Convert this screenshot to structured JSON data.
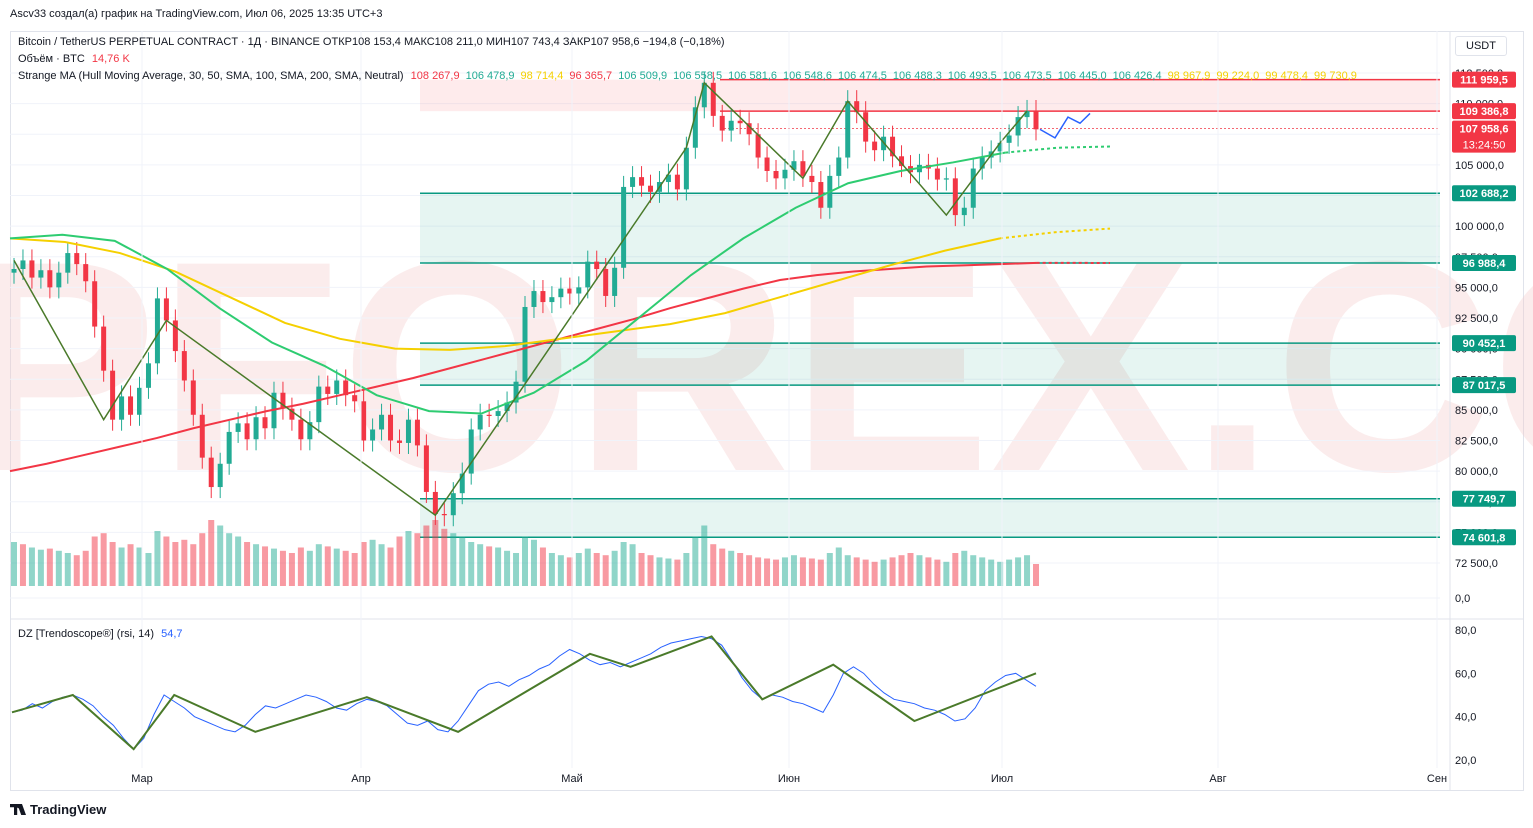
{
  "credit": "Ascv33 создал(а) график на TradingView.com, Июл 06, 2025 13:35 UTC+3",
  "symbol_line": "Bitcoin / TetherUS PERPETUAL CONTRACT · 1Д · BINANCE  ОТКР108 153,4  МАКС108 211,0  МИН107 743,4  ЗАКР107 958,6  −194,8 (−0,18%)",
  "volume_line": {
    "label": "Объём · BTC",
    "value": "14,76 K"
  },
  "ma_line": {
    "label": "Strange MA (Hull Moving Average, 30, 50, SMA, 100, SMA, 200, SMA, Neutral)",
    "values": [
      {
        "text": "108 267,9",
        "color": "#f23645"
      },
      {
        "text": "106 478,9",
        "color": "#22ab94"
      },
      {
        "text": "98 714,4",
        "color": "#f5d000"
      },
      {
        "text": "96 365,7",
        "color": "#f23645"
      },
      {
        "text": "106 509,9",
        "color": "#22ab94"
      },
      {
        "text": "106 558,5",
        "color": "#22ab94"
      },
      {
        "text": "106 581,6",
        "color": "#22ab94"
      },
      {
        "text": "106 548,6",
        "color": "#22ab94"
      },
      {
        "text": "106 474,5",
        "color": "#22ab94"
      },
      {
        "text": "106 488,3",
        "color": "#22ab94"
      },
      {
        "text": "106 493,5",
        "color": "#22ab94"
      },
      {
        "text": "106 473,5",
        "color": "#22ab94"
      },
      {
        "text": "106 445,0",
        "color": "#22ab94"
      },
      {
        "text": "106 426,4",
        "color": "#22ab94"
      },
      {
        "text": "98 967,9",
        "color": "#f5d000"
      },
      {
        "text": "99 224,0",
        "color": "#f5d000"
      },
      {
        "text": "99 478,4",
        "color": "#f5d000"
      },
      {
        "text": "99 730,9",
        "color": "#f5d000"
      }
    ]
  },
  "rsi_legend": {
    "label": "DZ [Trendoscope®] (rsi, 14)",
    "value": "54,7"
  },
  "currency_button": "USDT",
  "watermark": "TOPFOREX.COM",
  "chart_data": {
    "type": "candlestick",
    "currency": "USDT",
    "timeframe": "1D",
    "y_range": [
      0,
      114000
    ],
    "y_ticks": [
      {
        "value": 112500,
        "label": "112 500,0"
      },
      {
        "value": 110000,
        "label": "110 000,0"
      },
      {
        "value": 107500,
        "label": "107 500,0"
      },
      {
        "value": 105000,
        "label": "105 000,0"
      },
      {
        "value": 102500,
        "label": "102 500,0"
      },
      {
        "value": 100000,
        "label": "100 000,0"
      },
      {
        "value": 97500,
        "label": "97 500,0"
      },
      {
        "value": 95000,
        "label": "95 000,0"
      },
      {
        "value": 92500,
        "label": "92 500,0"
      },
      {
        "value": 90000,
        "label": "90 000,0"
      },
      {
        "value": 87500,
        "label": "87 500,0"
      },
      {
        "value": 85000,
        "label": "85 000,0"
      },
      {
        "value": 82500,
        "label": "82 500,0"
      },
      {
        "value": 80000,
        "label": "80 000,0"
      },
      {
        "value": 77500,
        "label": "77 500,0"
      },
      {
        "value": 75000,
        "label": "75 000,0"
      },
      {
        "value": 72500,
        "label": "72 500,0"
      },
      {
        "value": 0,
        "label": "0,0"
      }
    ],
    "x_labels": [
      "Мар",
      "Апр",
      "Май",
      "Июн",
      "Июл",
      "Авг",
      "Сен"
    ],
    "levels": [
      {
        "value": 111959.5,
        "label": "111 959,5",
        "color": "#f23645"
      },
      {
        "value": 109386.8,
        "label": "109 386,8",
        "color": "#f23645"
      },
      {
        "value": 107958.6,
        "label": "107 958,6",
        "color": "#f23645",
        "sublabel": "13:24:50"
      },
      {
        "value": 102688.2,
        "label": "102 688,2",
        "color": "#089981"
      },
      {
        "value": 96988.4,
        "label": "96 988,4",
        "color": "#089981"
      },
      {
        "value": 90452.1,
        "label": "90 452,1",
        "color": "#089981"
      },
      {
        "value": 87017.5,
        "label": "87 017,5",
        "color": "#089981"
      },
      {
        "value": 77749.7,
        "label": "77 749,7",
        "color": "#089981"
      },
      {
        "value": 74601.8,
        "label": "74 601,8",
        "color": "#089981"
      }
    ],
    "zones": [
      {
        "from": 109386.8,
        "to": 111959.5,
        "color": "#f23645"
      },
      {
        "from": 96988.4,
        "to": 102688.2,
        "color": "#089981"
      },
      {
        "from": 87017.5,
        "to": 90452.1,
        "color": "#089981"
      },
      {
        "from": 74601.8,
        "to": 77749.7,
        "color": "#089981"
      }
    ],
    "closes": [
      96500,
      97200,
      95800,
      96400,
      95000,
      96200,
      97800,
      96900,
      95500,
      91800,
      88200,
      84200,
      86100,
      84600,
      86800,
      88800,
      94100,
      92300,
      89800,
      87400,
      84600,
      81100,
      78700,
      80600,
      83200,
      83900,
      82600,
      84400,
      83500,
      86400,
      85100,
      84200,
      82600,
      84000,
      86900,
      86300,
      87400,
      86200,
      85700,
      82500,
      83400,
      84600,
      82500,
      82300,
      84200,
      82100,
      78300,
      76500,
      76400,
      78200,
      79800,
      83400,
      84600,
      84500,
      84900,
      85600,
      87300,
      93400,
      94700,
      93800,
      94200,
      94900,
      94500,
      95000,
      97100,
      96500,
      94300,
      96600,
      103200,
      104000,
      103300,
      102800,
      103600,
      104200,
      103000,
      106400,
      109700,
      111700,
      109000,
      107800,
      108600,
      108400,
      107500,
      105600,
      104500,
      103900,
      104600,
      105300,
      104100,
      103600,
      101500,
      104100,
      105600,
      110200,
      109300,
      106900,
      106200,
      107300,
      105700,
      104900,
      104400,
      105000,
      104700,
      103800,
      103900,
      100900,
      101500,
      104700,
      105600,
      106100,
      106800,
      107400,
      108900,
      109400,
      107900
    ],
    "volume": {
      "values": [
        40,
        38,
        35,
        33,
        34,
        32,
        30,
        28,
        32,
        45,
        48,
        40,
        35,
        38,
        35,
        30,
        50,
        45,
        40,
        42,
        38,
        48,
        60,
        55,
        48,
        45,
        40,
        38,
        36,
        34,
        32,
        30,
        35,
        32,
        38,
        36,
        34,
        32,
        30,
        40,
        42,
        38,
        35,
        45,
        50,
        48,
        55,
        60,
        52,
        48,
        45,
        40,
        38,
        36,
        35,
        32,
        30,
        45,
        42,
        35,
        30,
        28,
        26,
        30,
        34,
        30,
        28,
        32,
        40,
        38,
        30,
        28,
        26,
        25,
        24,
        30,
        45,
        55,
        38,
        34,
        32,
        30,
        28,
        26,
        25,
        24,
        26,
        28,
        26,
        25,
        24,
        30,
        35,
        28,
        26,
        24,
        22,
        24,
        26,
        28,
        30,
        28,
        26,
        24,
        22,
        30,
        32,
        28,
        26,
        24,
        22,
        24,
        26,
        28,
        20
      ],
      "up": [
        1,
        0,
        1,
        1,
        0,
        1,
        1,
        0,
        0,
        0,
        0,
        0,
        1,
        0,
        1,
        1,
        1,
        0,
        0,
        0,
        0,
        0,
        0,
        1,
        1,
        1,
        0,
        1,
        0,
        1,
        0,
        0,
        0,
        1,
        1,
        0,
        1,
        0,
        0,
        0,
        1,
        1,
        0,
        0,
        1,
        0,
        0,
        0,
        0,
        1,
        1,
        1,
        1,
        0,
        1,
        1,
        1,
        1,
        1,
        0,
        1,
        1,
        0,
        1,
        1,
        0,
        0,
        1,
        1,
        1,
        0,
        0,
        1,
        1,
        0,
        1,
        1,
        1,
        0,
        0,
        1,
        0,
        0,
        0,
        0,
        0,
        1,
        1,
        0,
        0,
        0,
        1,
        1,
        1,
        0,
        0,
        0,
        1,
        0,
        0,
        0,
        1,
        0,
        0,
        1,
        0,
        1,
        1,
        1,
        1,
        1,
        1,
        1,
        1,
        0
      ]
    },
    "ma_series": [
      {
        "name": "ma-red",
        "color": "#f23645",
        "values": [
          80000,
          80600,
          81300,
          82000,
          82700,
          83500,
          84200,
          84900,
          85500,
          86200,
          86900,
          87600,
          88400,
          89200,
          90000,
          90800,
          91600,
          92400,
          93300,
          94100,
          94900,
          95600,
          96000,
          96300,
          96500,
          96700,
          96800,
          96900,
          97000,
          97000,
          96988
        ]
      },
      {
        "name": "ma-yellow",
        "color": "#f5d000",
        "values": [
          99000,
          98700,
          97800,
          96300,
          94200,
          92100,
          90800,
          90000,
          89900,
          90200,
          90800,
          91400,
          92000,
          92900,
          94200,
          95500,
          96800,
          98000,
          99000,
          99500,
          99800
        ]
      },
      {
        "name": "ma-green",
        "color": "#2ecc71",
        "values": [
          99000,
          99300,
          98800,
          96500,
          93300,
          90500,
          88600,
          86200,
          84900,
          84700,
          86400,
          89000,
          92500,
          96000,
          99000,
          101500,
          103500,
          104500,
          105200,
          106000,
          106400,
          106500
        ]
      }
    ],
    "rsi": {
      "y_ticks": [
        {
          "value": 80,
          "label": "80,0"
        },
        {
          "value": 60,
          "label": "60,0"
        },
        {
          "value": 40,
          "label": "40,0"
        },
        {
          "value": 20,
          "label": "20,0"
        }
      ],
      "y_range": [
        16,
        84
      ],
      "values": [
        42,
        43,
        46,
        44,
        47,
        49,
        50,
        48,
        45,
        40,
        36,
        30,
        25,
        30,
        41,
        50,
        47,
        44,
        40,
        38,
        36,
        34,
        33,
        36,
        41,
        45,
        44,
        46,
        48,
        50,
        49,
        47,
        44,
        43,
        46,
        48,
        47,
        45,
        41,
        37,
        36,
        38,
        34,
        33,
        38,
        45,
        52,
        55,
        56,
        54,
        57,
        59,
        62,
        64,
        68,
        71,
        69,
        66,
        64,
        65,
        63,
        65,
        67,
        69,
        72,
        74,
        75,
        76,
        77,
        76,
        73,
        66,
        58,
        52,
        48,
        50,
        49,
        47,
        46,
        44,
        42,
        50,
        60,
        63,
        60,
        55,
        51,
        48,
        47,
        46,
        44,
        43,
        41,
        38,
        39,
        44,
        52,
        56,
        59,
        60,
        57,
        54
      ]
    }
  }
}
